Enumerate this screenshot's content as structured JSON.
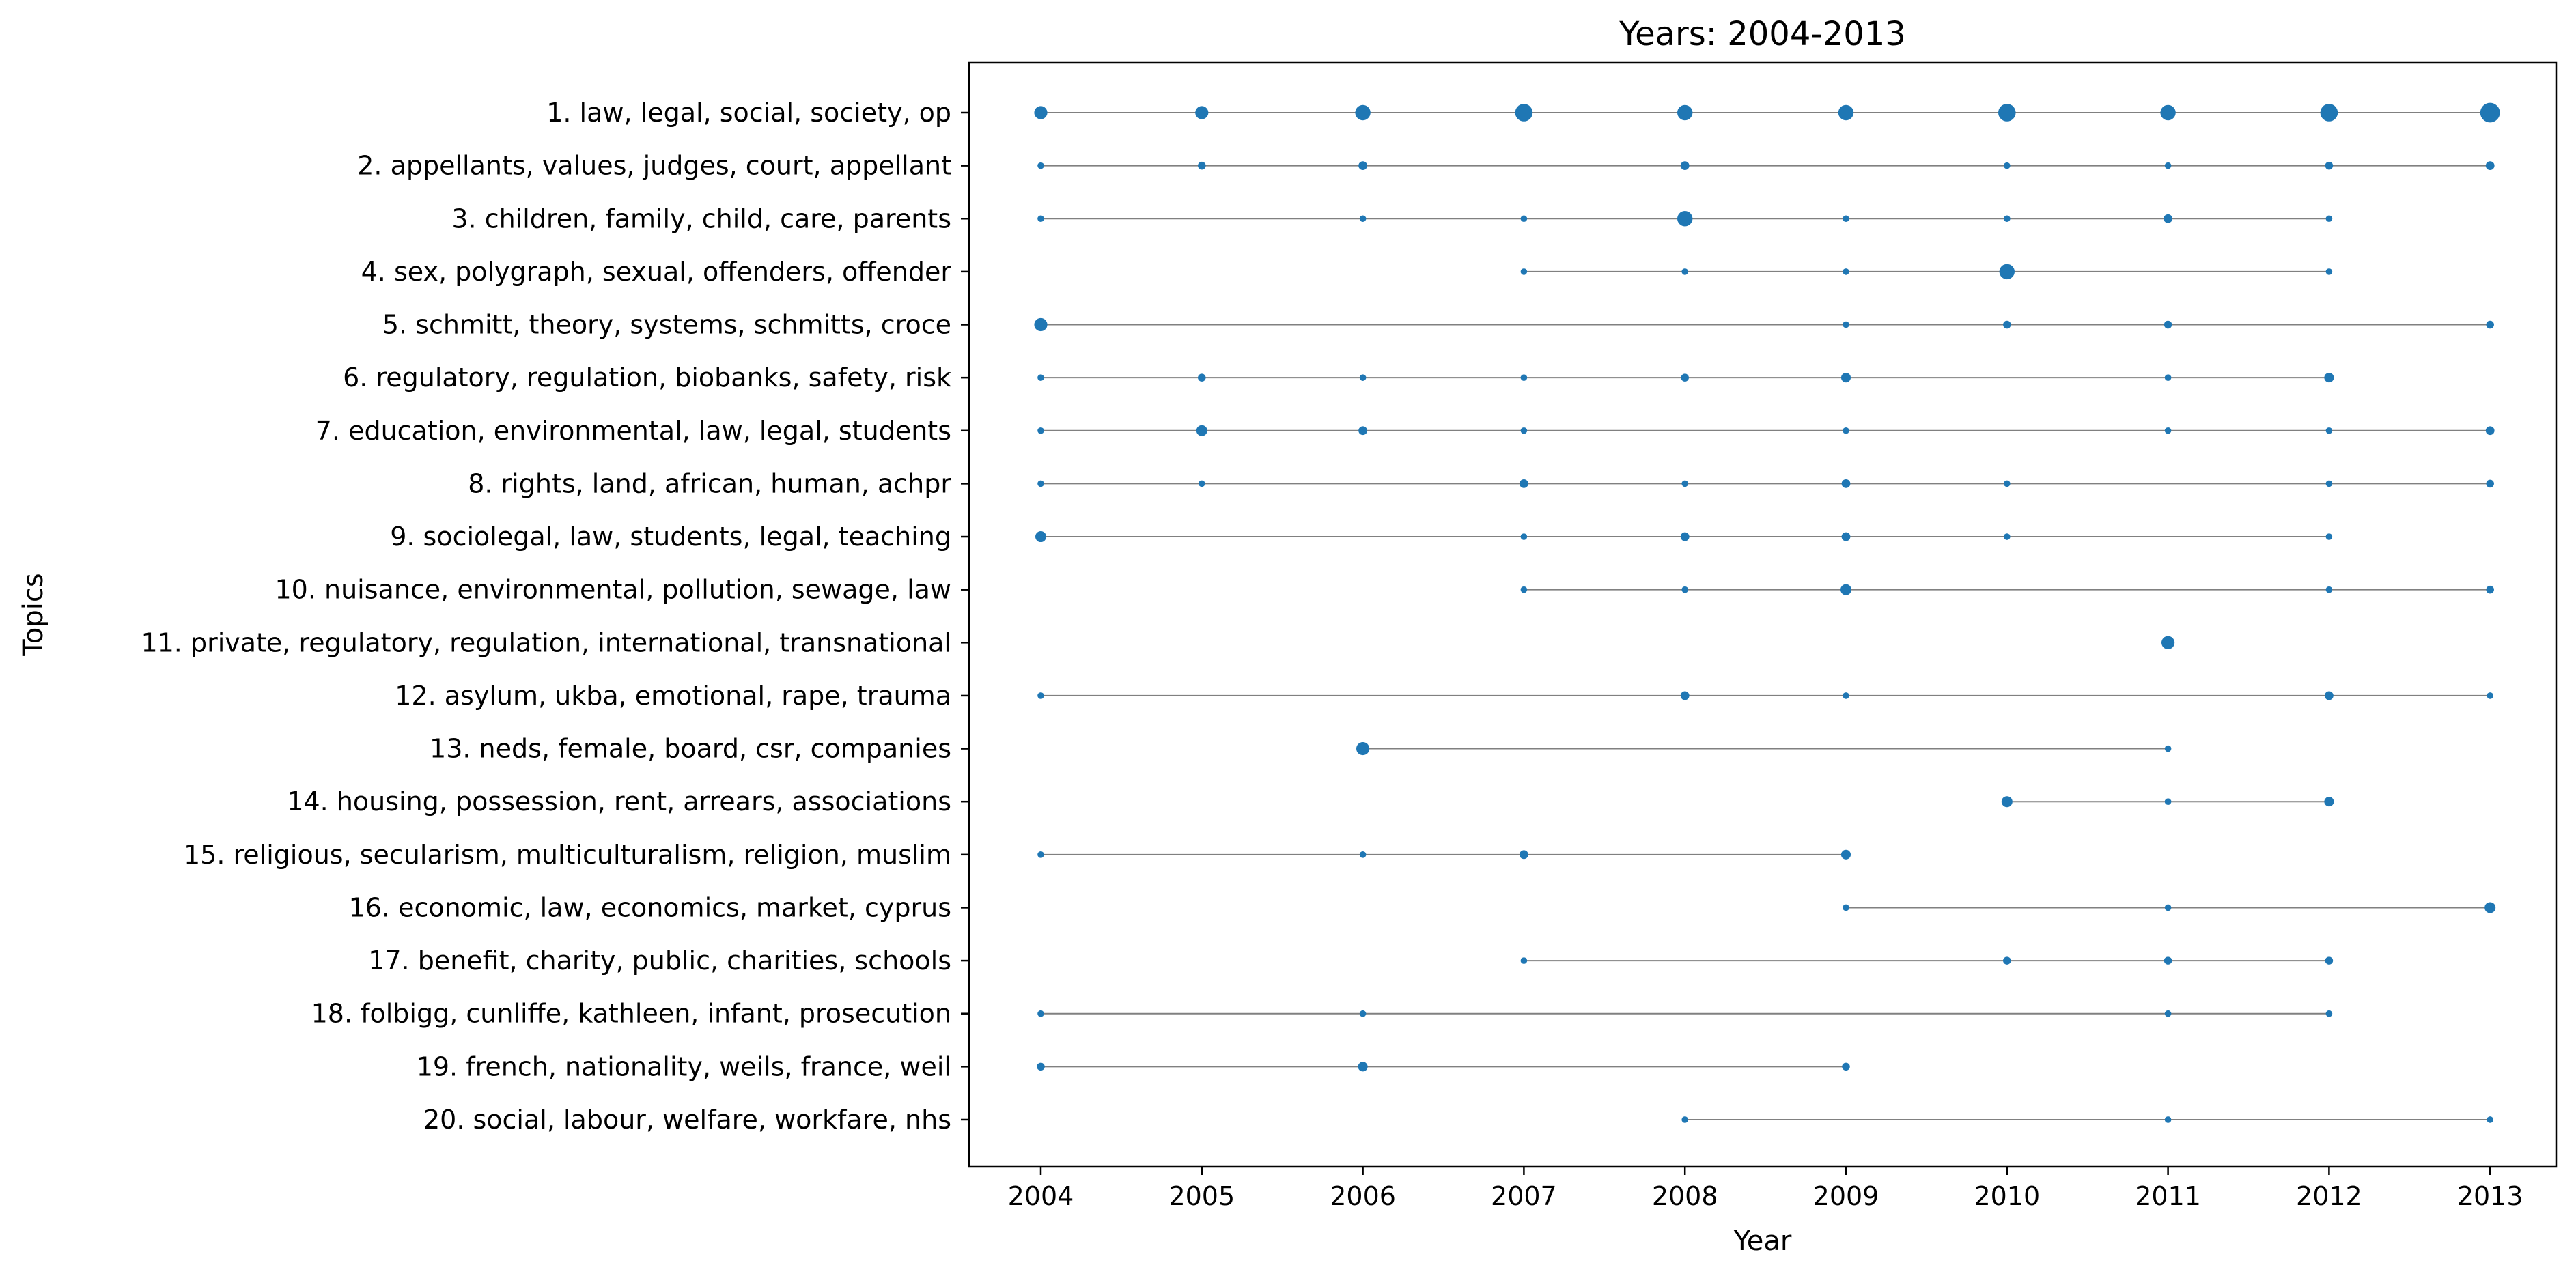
{
  "chart_data": {
    "type": "scatter",
    "title": "Years: 2004-2013",
    "xlabel": "Year",
    "ylabel": "Topics",
    "x_ticks": [
      2004,
      2005,
      2006,
      2007,
      2008,
      2009,
      2010,
      2011,
      2012,
      2013
    ],
    "xlim": [
      2003.55,
      2013.45
    ],
    "grid": false,
    "legend": "none",
    "colors": {
      "marker": "#1f77b4",
      "line": "#808080"
    },
    "topics": [
      {
        "label": "1. law, legal, social, society, op",
        "points": [
          {
            "year": 2004,
            "size": 3
          },
          {
            "year": 2005,
            "size": 3
          },
          {
            "year": 2006,
            "size": 3.5
          },
          {
            "year": 2007,
            "size": 4
          },
          {
            "year": 2008,
            "size": 3.5
          },
          {
            "year": 2009,
            "size": 3.5
          },
          {
            "year": 2010,
            "size": 4
          },
          {
            "year": 2011,
            "size": 3.5
          },
          {
            "year": 2012,
            "size": 4
          },
          {
            "year": 2013,
            "size": 4.5
          }
        ]
      },
      {
        "label": "2. appellants, values, judges, court, appellant",
        "points": [
          {
            "year": 2004,
            "size": 1.5
          },
          {
            "year": 2005,
            "size": 1.8
          },
          {
            "year": 2006,
            "size": 2
          },
          {
            "year": 2008,
            "size": 2
          },
          {
            "year": 2010,
            "size": 1.5
          },
          {
            "year": 2011,
            "size": 1.5
          },
          {
            "year": 2012,
            "size": 1.8
          },
          {
            "year": 2013,
            "size": 2
          }
        ]
      },
      {
        "label": "3. children, family, child, care, parents",
        "points": [
          {
            "year": 2004,
            "size": 1.5
          },
          {
            "year": 2006,
            "size": 1.5
          },
          {
            "year": 2007,
            "size": 1.5
          },
          {
            "year": 2008,
            "size": 3.5
          },
          {
            "year": 2009,
            "size": 1.5
          },
          {
            "year": 2010,
            "size": 1.5
          },
          {
            "year": 2011,
            "size": 2
          },
          {
            "year": 2012,
            "size": 1.5
          }
        ]
      },
      {
        "label": "4. sex, polygraph, sexual, offenders, offender",
        "points": [
          {
            "year": 2007,
            "size": 1.5
          },
          {
            "year": 2008,
            "size": 1.5
          },
          {
            "year": 2009,
            "size": 1.5
          },
          {
            "year": 2010,
            "size": 3.5
          },
          {
            "year": 2012,
            "size": 1.5
          }
        ]
      },
      {
        "label": "5. schmitt, theory, systems, schmitts, croce",
        "points": [
          {
            "year": 2004,
            "size": 3
          },
          {
            "year": 2009,
            "size": 1.5
          },
          {
            "year": 2010,
            "size": 1.8
          },
          {
            "year": 2011,
            "size": 1.8
          },
          {
            "year": 2013,
            "size": 1.8
          }
        ]
      },
      {
        "label": "6. regulatory, regulation, biobanks, safety, risk",
        "points": [
          {
            "year": 2004,
            "size": 1.5
          },
          {
            "year": 2005,
            "size": 1.8
          },
          {
            "year": 2006,
            "size": 1.5
          },
          {
            "year": 2007,
            "size": 1.5
          },
          {
            "year": 2008,
            "size": 1.8
          },
          {
            "year": 2009,
            "size": 2.2
          },
          {
            "year": 2011,
            "size": 1.5
          },
          {
            "year": 2012,
            "size": 2.2
          }
        ]
      },
      {
        "label": "7. education, environmental, law, legal, students",
        "points": [
          {
            "year": 2004,
            "size": 1.5
          },
          {
            "year": 2005,
            "size": 2.5
          },
          {
            "year": 2006,
            "size": 2
          },
          {
            "year": 2007,
            "size": 1.5
          },
          {
            "year": 2009,
            "size": 1.5
          },
          {
            "year": 2011,
            "size": 1.5
          },
          {
            "year": 2012,
            "size": 1.5
          },
          {
            "year": 2013,
            "size": 2
          }
        ]
      },
      {
        "label": "8. rights, land, african, human, achpr",
        "points": [
          {
            "year": 2004,
            "size": 1.5
          },
          {
            "year": 2005,
            "size": 1.5
          },
          {
            "year": 2007,
            "size": 2
          },
          {
            "year": 2008,
            "size": 1.5
          },
          {
            "year": 2009,
            "size": 2
          },
          {
            "year": 2010,
            "size": 1.5
          },
          {
            "year": 2012,
            "size": 1.5
          },
          {
            "year": 2013,
            "size": 1.8
          }
        ]
      },
      {
        "label": "9. sociolegal, law, students, legal, teaching",
        "points": [
          {
            "year": 2004,
            "size": 2.5
          },
          {
            "year": 2007,
            "size": 1.5
          },
          {
            "year": 2008,
            "size": 2
          },
          {
            "year": 2009,
            "size": 2
          },
          {
            "year": 2010,
            "size": 1.5
          },
          {
            "year": 2012,
            "size": 1.5
          }
        ]
      },
      {
        "label": "10. nuisance, environmental, pollution, sewage, law",
        "points": [
          {
            "year": 2007,
            "size": 1.5
          },
          {
            "year": 2008,
            "size": 1.5
          },
          {
            "year": 2009,
            "size": 2.5
          },
          {
            "year": 2012,
            "size": 1.5
          },
          {
            "year": 2013,
            "size": 1.8
          }
        ]
      },
      {
        "label": "11. private, regulatory, regulation, international, transnational",
        "points": [
          {
            "year": 2011,
            "size": 3
          }
        ]
      },
      {
        "label": "12. asylum, ukba, emotional, rape, trauma",
        "points": [
          {
            "year": 2004,
            "size": 1.5
          },
          {
            "year": 2008,
            "size": 2
          },
          {
            "year": 2009,
            "size": 1.5
          },
          {
            "year": 2012,
            "size": 2
          },
          {
            "year": 2013,
            "size": 1.5
          }
        ]
      },
      {
        "label": "13. neds, female, board, csr, companies",
        "points": [
          {
            "year": 2006,
            "size": 3
          },
          {
            "year": 2011,
            "size": 1.5
          }
        ]
      },
      {
        "label": "14. housing, possession, rent, arrears, associations",
        "points": [
          {
            "year": 2010,
            "size": 2.5
          },
          {
            "year": 2011,
            "size": 1.5
          },
          {
            "year": 2012,
            "size": 2.2
          }
        ]
      },
      {
        "label": "15. religious, secularism, multiculturalism, religion, muslim",
        "points": [
          {
            "year": 2004,
            "size": 1.5
          },
          {
            "year": 2006,
            "size": 1.5
          },
          {
            "year": 2007,
            "size": 2
          },
          {
            "year": 2009,
            "size": 2.2
          }
        ]
      },
      {
        "label": "16. economic, law, economics, market, cyprus",
        "points": [
          {
            "year": 2009,
            "size": 1.5
          },
          {
            "year": 2011,
            "size": 1.5
          },
          {
            "year": 2013,
            "size": 2.5
          }
        ]
      },
      {
        "label": "17. benefit, charity, public, charities, schools",
        "points": [
          {
            "year": 2007,
            "size": 1.5
          },
          {
            "year": 2010,
            "size": 1.8
          },
          {
            "year": 2011,
            "size": 1.8
          },
          {
            "year": 2012,
            "size": 1.8
          }
        ]
      },
      {
        "label": "18. folbigg, cunliffe, kathleen, infant, prosecution",
        "points": [
          {
            "year": 2004,
            "size": 1.5
          },
          {
            "year": 2006,
            "size": 1.5
          },
          {
            "year": 2011,
            "size": 1.5
          },
          {
            "year": 2012,
            "size": 1.5
          }
        ]
      },
      {
        "label": "19. french, nationality, weils, france, weil",
        "points": [
          {
            "year": 2004,
            "size": 1.8
          },
          {
            "year": 2006,
            "size": 2.2
          },
          {
            "year": 2009,
            "size": 1.8
          }
        ]
      },
      {
        "label": "20. social, labour, welfare, workfare, nhs",
        "points": [
          {
            "year": 2008,
            "size": 1.5
          },
          {
            "year": 2011,
            "size": 1.5
          },
          {
            "year": 2013,
            "size": 1.5
          }
        ]
      }
    ]
  }
}
